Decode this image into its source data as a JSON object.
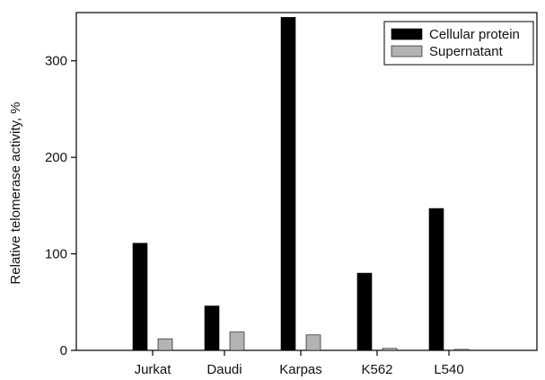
{
  "chart_data": {
    "type": "bar",
    "ylabel": "Relative telomerase activity, %",
    "xlabel": "",
    "ylim": [
      0,
      350
    ],
    "yticks": [
      0,
      100,
      200,
      300
    ],
    "categories": [
      "Jurkat",
      "Daudi",
      "Karpas",
      "K562",
      "L540"
    ],
    "series": [
      {
        "name": "Cellular protein",
        "color": "#000000",
        "values": [
          111,
          46,
          345,
          80,
          147
        ]
      },
      {
        "name": "Supernatant",
        "color": "#b3b3b3",
        "values": [
          12,
          19,
          16,
          2,
          1
        ]
      }
    ],
    "legend": "top-right",
    "grid": false
  }
}
